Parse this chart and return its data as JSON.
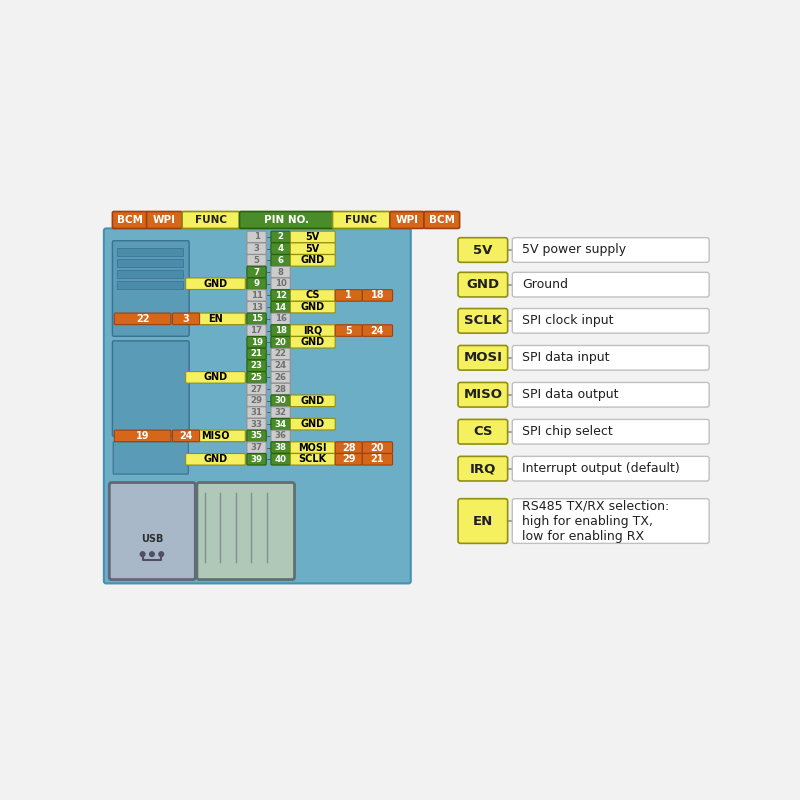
{
  "bg_color": "#f2f2f2",
  "orange_color": "#d4671a",
  "green_color": "#4a8c2a",
  "yellow_color": "#f5f060",
  "yellow_border": "#b8b020",
  "pin_rows": [
    {
      "left_pin": "1",
      "right_pin": "2",
      "left_func": null,
      "right_func": "5V",
      "left_wpi": null,
      "left_bcm": null,
      "right_wpi": null,
      "right_bcm": null,
      "left_green": false,
      "right_green": true
    },
    {
      "left_pin": "3",
      "right_pin": "4",
      "left_func": null,
      "right_func": "5V",
      "left_wpi": null,
      "left_bcm": null,
      "right_wpi": null,
      "right_bcm": null,
      "left_green": false,
      "right_green": true
    },
    {
      "left_pin": "5",
      "right_pin": "6",
      "left_func": null,
      "right_func": "GND",
      "left_wpi": null,
      "left_bcm": null,
      "right_wpi": null,
      "right_bcm": null,
      "left_green": false,
      "right_green": true
    },
    {
      "left_pin": "7",
      "right_pin": "8",
      "left_func": null,
      "right_func": null,
      "left_wpi": null,
      "left_bcm": null,
      "right_wpi": null,
      "right_bcm": null,
      "left_green": true,
      "right_green": false
    },
    {
      "left_pin": "9",
      "right_pin": "10",
      "left_func": "GND",
      "right_func": null,
      "left_wpi": null,
      "left_bcm": null,
      "right_wpi": null,
      "right_bcm": null,
      "left_green": true,
      "right_green": false
    },
    {
      "left_pin": "11",
      "right_pin": "12",
      "left_func": null,
      "right_func": "CS",
      "left_wpi": null,
      "left_bcm": null,
      "right_wpi": "1",
      "right_bcm": "18",
      "left_green": false,
      "right_green": true
    },
    {
      "left_pin": "13",
      "right_pin": "14",
      "left_func": null,
      "right_func": "GND",
      "left_wpi": null,
      "left_bcm": null,
      "right_wpi": null,
      "right_bcm": null,
      "left_green": false,
      "right_green": true
    },
    {
      "left_pin": "15",
      "right_pin": "16",
      "left_func": "EN",
      "right_func": null,
      "left_wpi": "3",
      "left_bcm": "22",
      "right_wpi": null,
      "right_bcm": null,
      "left_green": true,
      "right_green": false
    },
    {
      "left_pin": "17",
      "right_pin": "18",
      "left_func": null,
      "right_func": "IRQ",
      "left_wpi": null,
      "left_bcm": null,
      "right_wpi": "5",
      "right_bcm": "24",
      "left_green": false,
      "right_green": true
    },
    {
      "left_pin": "19",
      "right_pin": "20",
      "left_func": null,
      "right_func": "GND",
      "left_wpi": null,
      "left_bcm": null,
      "right_wpi": null,
      "right_bcm": null,
      "left_green": true,
      "right_green": true
    },
    {
      "left_pin": "21",
      "right_pin": "22",
      "left_func": null,
      "right_func": null,
      "left_wpi": null,
      "left_bcm": null,
      "right_wpi": null,
      "right_bcm": null,
      "left_green": true,
      "right_green": false
    },
    {
      "left_pin": "23",
      "right_pin": "24",
      "left_func": null,
      "right_func": null,
      "left_wpi": null,
      "left_bcm": null,
      "right_wpi": null,
      "right_bcm": null,
      "left_green": true,
      "right_green": false
    },
    {
      "left_pin": "25",
      "right_pin": "26",
      "left_func": "GND",
      "right_func": null,
      "left_wpi": null,
      "left_bcm": null,
      "right_wpi": null,
      "right_bcm": null,
      "left_green": true,
      "right_green": false
    },
    {
      "left_pin": "27",
      "right_pin": "28",
      "left_func": null,
      "right_func": null,
      "left_wpi": null,
      "left_bcm": null,
      "right_wpi": null,
      "right_bcm": null,
      "left_green": false,
      "right_green": false
    },
    {
      "left_pin": "29",
      "right_pin": "30",
      "left_func": null,
      "right_func": "GND",
      "left_wpi": null,
      "left_bcm": null,
      "right_wpi": null,
      "right_bcm": null,
      "left_green": false,
      "right_green": true
    },
    {
      "left_pin": "31",
      "right_pin": "32",
      "left_func": null,
      "right_func": null,
      "left_wpi": null,
      "left_bcm": null,
      "right_wpi": null,
      "right_bcm": null,
      "left_green": false,
      "right_green": false
    },
    {
      "left_pin": "33",
      "right_pin": "34",
      "left_func": null,
      "right_func": "GND",
      "left_wpi": null,
      "left_bcm": null,
      "right_wpi": null,
      "right_bcm": null,
      "left_green": false,
      "right_green": true
    },
    {
      "left_pin": "35",
      "right_pin": "36",
      "left_func": "MISO",
      "right_func": null,
      "left_wpi": "24",
      "left_bcm": "19",
      "right_wpi": null,
      "right_bcm": null,
      "left_green": true,
      "right_green": false
    },
    {
      "left_pin": "37",
      "right_pin": "38",
      "left_func": null,
      "right_func": "MOSI",
      "left_wpi": null,
      "left_bcm": null,
      "right_wpi": "28",
      "right_bcm": "20",
      "left_green": false,
      "right_green": true
    },
    {
      "left_pin": "39",
      "right_pin": "40",
      "left_func": "GND",
      "right_func": "SCLK",
      "left_wpi": null,
      "left_bcm": null,
      "right_wpi": "29",
      "right_bcm": "21",
      "left_green": true,
      "right_green": true
    }
  ],
  "header_labels": [
    "BCM",
    "WPI",
    "FUNC",
    "PIN NO.",
    "FUNC",
    "WPI",
    "BCM"
  ],
  "header_colors": [
    "orange",
    "orange",
    "yellow",
    "green",
    "yellow",
    "orange",
    "orange"
  ],
  "legend_items": [
    {
      "label": "5V",
      "desc": "5V power supply"
    },
    {
      "label": "GND",
      "desc": "Ground"
    },
    {
      "label": "SCLK",
      "desc": "SPI clock input"
    },
    {
      "label": "MOSI",
      "desc": "SPI data input"
    },
    {
      "label": "MISO",
      "desc": "SPI data output"
    },
    {
      "label": "CS",
      "desc": "SPI chip select"
    },
    {
      "label": "IRQ",
      "desc": "Interrupt output (default)"
    },
    {
      "label": "EN",
      "desc": "RS485 TX/RX selection:\nhigh for enabling TX,\nlow for enabling RX"
    }
  ]
}
